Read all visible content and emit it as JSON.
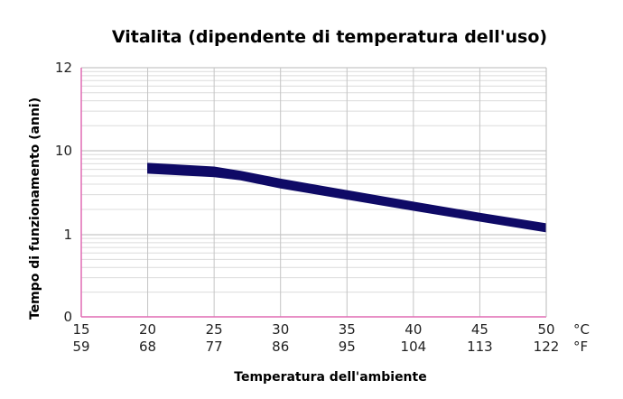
{
  "chart_data": {
    "type": "line",
    "title": "Vitalita (dipendente di temperatura dell'uso)",
    "xlabel": "Temperatura dell'ambiente",
    "ylabel": "Tempo di funzionamento (anni)",
    "x_ticks_celsius": [
      "15",
      "20",
      "25",
      "30",
      "35",
      "40",
      "45",
      "50"
    ],
    "x_ticks_fahrenheit": [
      "59",
      "68",
      "77",
      "86",
      "95",
      "104",
      "113",
      "122"
    ],
    "x_unit_celsius": "°C",
    "x_unit_fahrenheit": "°F",
    "y_ticks": [
      "0",
      "1",
      "10",
      "12"
    ],
    "xlim": [
      15,
      50
    ],
    "y_scale": "log",
    "grid": true,
    "color": "#0f0a66",
    "series": [
      {
        "upper": {
          "x": [
            20,
            25,
            27,
            30,
            35,
            40,
            45,
            50
          ],
          "y": [
            7.1,
            6.4,
            5.7,
            4.6,
            3.35,
            2.45,
            1.8,
            1.35
          ]
        },
        "lower": {
          "x": [
            20,
            25,
            27,
            30,
            35,
            40,
            45,
            50
          ],
          "y": [
            5.4,
            4.9,
            4.5,
            3.6,
            2.65,
            1.95,
            1.45,
            1.08
          ]
        }
      }
    ]
  }
}
